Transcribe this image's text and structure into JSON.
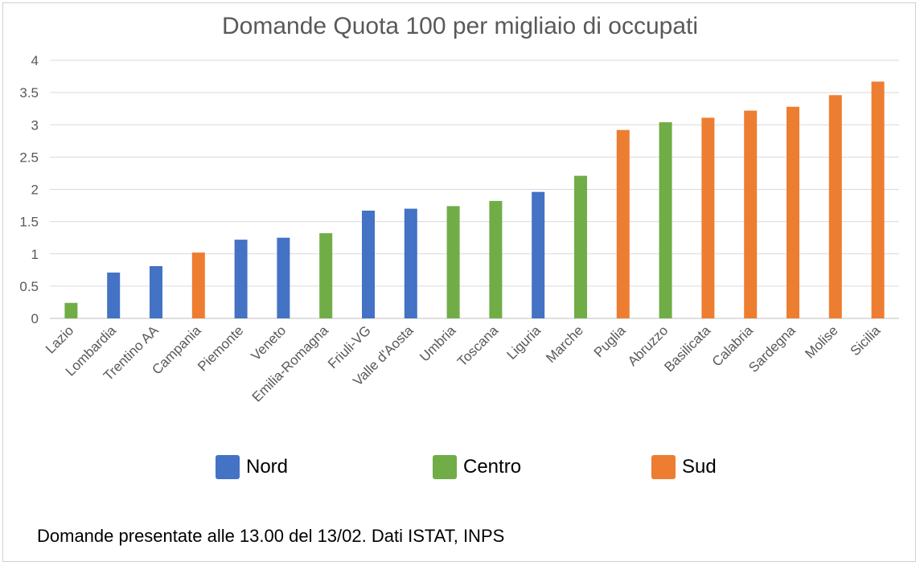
{
  "chart_data": {
    "type": "bar",
    "title": "Domande Quota 100 per migliaio di occupati",
    "xlabel": "",
    "ylabel": "",
    "ylim": [
      0,
      4
    ],
    "yticks": [
      0,
      0.5,
      1,
      1.5,
      2,
      2.5,
      3,
      3.5,
      4
    ],
    "grid": true,
    "legend_position": "bottom",
    "categories": [
      "Lazio",
      "Lombardia",
      "Trentino AA",
      "Campania",
      "Piemonte",
      "Veneto",
      "Emilia-Romagna",
      "Friuli-VG",
      "Valle d'Aosta",
      "Umbria",
      "Toscana",
      "Liguria",
      "Marche",
      "Puglia",
      "Abruzzo",
      "Basilicata",
      "Calabria",
      "Sardegna",
      "Molise",
      "Sicilia"
    ],
    "values": [
      0.24,
      0.71,
      0.81,
      1.02,
      1.22,
      1.25,
      1.32,
      1.67,
      1.7,
      1.74,
      1.82,
      1.96,
      2.21,
      2.92,
      3.04,
      3.11,
      3.22,
      3.28,
      3.46,
      3.67
    ],
    "groups": [
      "Centro",
      "Nord",
      "Nord",
      "Sud",
      "Nord",
      "Nord",
      "Centro",
      "Nord",
      "Nord",
      "Centro",
      "Centro",
      "Nord",
      "Centro",
      "Sud",
      "Centro",
      "Sud",
      "Sud",
      "Sud",
      "Sud",
      "Sud"
    ],
    "legend": [
      {
        "name": "Nord",
        "color": "#4472c4"
      },
      {
        "name": "Centro",
        "color": "#70ad47"
      },
      {
        "name": "Sud",
        "color": "#ed7d31"
      }
    ],
    "footnote": "Domande presentate alle 13.00 del 13/02. Dati ISTAT,  INPS"
  }
}
